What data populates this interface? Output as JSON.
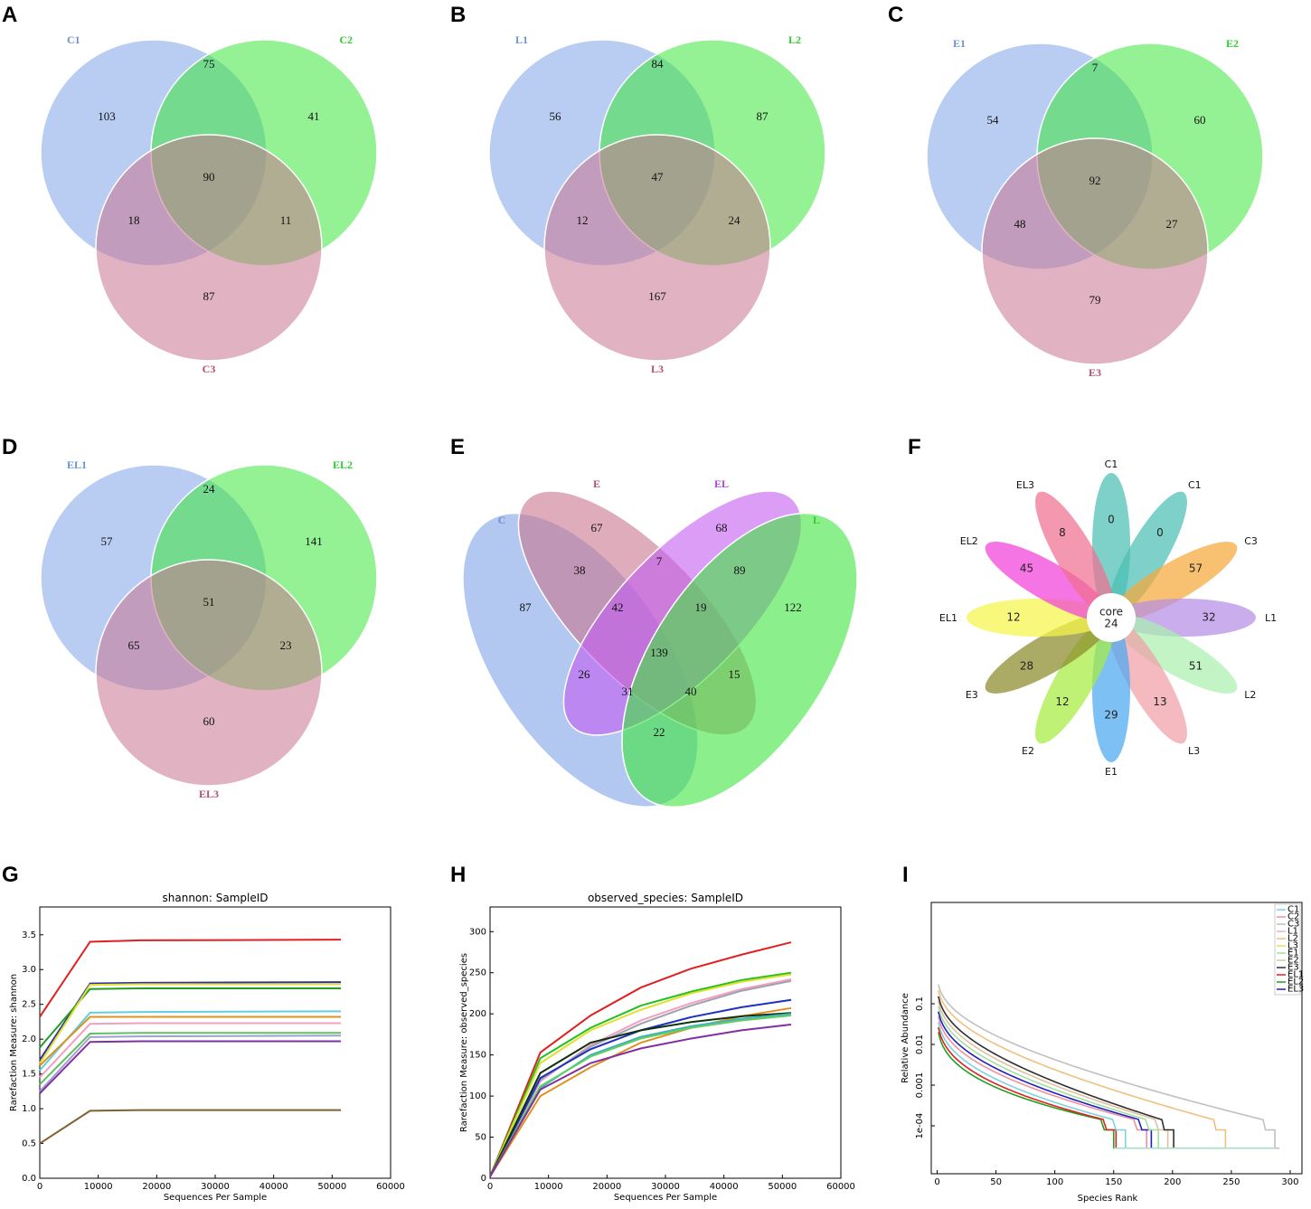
{
  "chart_data": [
    {
      "panel": "A",
      "type": "venn3",
      "sets": [
        {
          "name": "C1",
          "color": "#7fa3e8"
        },
        {
          "name": "C2",
          "color": "#3de63d"
        },
        {
          "name": "C3",
          "color": "#c97590"
        }
      ],
      "regions": {
        "only1": "103",
        "only2": "41",
        "only3": "87",
        "r12": "75",
        "r13": "18",
        "r23": "11",
        "all": "90"
      }
    },
    {
      "panel": "B",
      "type": "venn3",
      "sets": [
        {
          "name": "L1",
          "color": "#7fa3e8"
        },
        {
          "name": "L2",
          "color": "#3de63d"
        },
        {
          "name": "L3",
          "color": "#c97590"
        }
      ],
      "regions": {
        "only1": "56",
        "only2": "87",
        "only3": "167",
        "r12": "84",
        "r13": "12",
        "r23": "24",
        "all": "47"
      }
    },
    {
      "panel": "C",
      "type": "venn3",
      "sets": [
        {
          "name": "E1",
          "color": "#7fa3e8"
        },
        {
          "name": "E2",
          "color": "#3de63d"
        },
        {
          "name": "E3",
          "color": "#c97590"
        }
      ],
      "regions": {
        "only1": "54",
        "only2": "60",
        "only3": "79",
        "r12": "7",
        "r13": "48",
        "r23": "27",
        "all": "92"
      }
    },
    {
      "panel": "D",
      "type": "venn3",
      "sets": [
        {
          "name": "EL1",
          "color": "#7fa3e8"
        },
        {
          "name": "EL2",
          "color": "#3de63d"
        },
        {
          "name": "EL3",
          "color": "#c97590"
        }
      ],
      "regions": {
        "only1": "57",
        "only2": "141",
        "only3": "60",
        "r12": "24",
        "r13": "65",
        "r23": "23",
        "all": "51"
      }
    },
    {
      "panel": "E",
      "type": "venn4",
      "sets": [
        {
          "name": "C",
          "color": "#7fa3e8"
        },
        {
          "name": "E",
          "color": "#c97590"
        },
        {
          "name": "EL",
          "color": "#c35cf0"
        },
        {
          "name": "L",
          "color": "#3de63d"
        }
      ],
      "regions": [
        {
          "label": "C only",
          "value": "87"
        },
        {
          "label": "E only",
          "value": "67"
        },
        {
          "label": "EL only",
          "value": "68"
        },
        {
          "label": "L only",
          "value": "122"
        },
        {
          "label": "C,E",
          "value": "38"
        },
        {
          "label": "E,EL",
          "value": "7"
        },
        {
          "label": "EL,L",
          "value": "89"
        },
        {
          "label": "C,E,EL",
          "value": "42"
        },
        {
          "label": "E,EL,L",
          "value": "19"
        },
        {
          "label": "all",
          "value": "139"
        },
        {
          "label": "C,EL",
          "value": "26"
        },
        {
          "label": "E,L",
          "value": "15"
        },
        {
          "label": "C,EL,L",
          "value": "31"
        },
        {
          "label": "C,E,L",
          "value": "40"
        },
        {
          "label": "C,L",
          "value": "22"
        }
      ]
    },
    {
      "panel": "F",
      "type": "flower",
      "core_label": "core",
      "core_value": "24",
      "petals": [
        {
          "name": "C1",
          "value": "0",
          "color": "#4bbfb4"
        },
        {
          "name": "C1",
          "value": "0",
          "color": "#4bbfb4"
        },
        {
          "name": "C3",
          "value": "57",
          "color": "#f5a93a"
        },
        {
          "name": "L1",
          "value": "32",
          "color": "#b48ee6"
        },
        {
          "name": "L2",
          "value": "51",
          "color": "#aaf0b0"
        },
        {
          "name": "L3",
          "value": "13",
          "color": "#f0a0a8"
        },
        {
          "name": "E1",
          "value": "29",
          "color": "#4aa8f0"
        },
        {
          "name": "E2",
          "value": "12",
          "color": "#a6ec40"
        },
        {
          "name": "E3",
          "value": "28",
          "color": "#8b8a2a"
        },
        {
          "name": "EL1",
          "value": "12",
          "color": "#f5f54a"
        },
        {
          "name": "EL2",
          "value": "45",
          "color": "#f040d8"
        },
        {
          "name": "EL3",
          "value": "8",
          "color": "#f07090"
        }
      ]
    },
    {
      "panel": "G",
      "type": "line",
      "title": "shannon: SampleID",
      "xlabel": "Sequences Per Sample",
      "ylabel": "Rarefaction Measure: shannon",
      "xlim": [
        0,
        60000
      ],
      "ylim": [
        0.0,
        3.9
      ],
      "xticks": [
        "0",
        "10000",
        "20000",
        "30000",
        "40000",
        "50000",
        "60000"
      ],
      "yticks": [
        "0.0",
        "0.5",
        "1.0",
        "1.5",
        "2.0",
        "2.5",
        "3.0",
        "3.5"
      ],
      "x": [
        0,
        8600,
        17200,
        51500
      ],
      "series": [
        {
          "color": "#e02020",
          "values": [
            2.32,
            3.4,
            3.42,
            3.43
          ]
        },
        {
          "color": "#3030a0",
          "values": [
            1.7,
            2.8,
            2.81,
            2.82
          ]
        },
        {
          "color": "#20a020",
          "values": [
            1.88,
            2.72,
            2.73,
            2.73
          ]
        },
        {
          "color": "#e0e030",
          "values": [
            1.65,
            2.78,
            2.79,
            2.79
          ]
        },
        {
          "color": "#60d0e0",
          "values": [
            1.55,
            2.38,
            2.39,
            2.4
          ]
        },
        {
          "color": "#e09020",
          "values": [
            1.62,
            2.32,
            2.32,
            2.32
          ]
        },
        {
          "color": "#f0a0c0",
          "values": [
            1.45,
            2.22,
            2.23,
            2.23
          ]
        },
        {
          "color": "#60c060",
          "values": [
            1.35,
            2.08,
            2.09,
            2.09
          ]
        },
        {
          "color": "#a0a0d0",
          "values": [
            1.25,
            2.03,
            2.04,
            2.05
          ]
        },
        {
          "color": "#8030a0",
          "values": [
            1.22,
            1.96,
            1.97,
            1.97
          ]
        },
        {
          "color": "#806030",
          "values": [
            0.5,
            0.97,
            0.98,
            0.98
          ]
        }
      ]
    },
    {
      "panel": "H",
      "type": "line",
      "title": "observed_species: SampleID",
      "xlabel": "Sequences Per Sample",
      "ylabel": "Rarefaction Measure: observed_species",
      "xlim": [
        0,
        60000
      ],
      "ylim": [
        0,
        330
      ],
      "xticks": [
        "0",
        "10000",
        "20000",
        "30000",
        "40000",
        "50000",
        "60000"
      ],
      "yticks": [
        "0",
        "50",
        "100",
        "150",
        "200",
        "250",
        "300"
      ],
      "x": [
        0,
        8600,
        17200,
        25800,
        34400,
        43000,
        51500
      ],
      "series": [
        {
          "color": "#e02020",
          "values": [
            2,
            153,
            198,
            232,
            255,
            272,
            287
          ]
        },
        {
          "color": "#20c020",
          "values": [
            2,
            146,
            183,
            210,
            227,
            241,
            250
          ]
        },
        {
          "color": "#e0e030",
          "values": [
            2,
            140,
            180,
            205,
            225,
            239,
            248
          ]
        },
        {
          "color": "#f0a0c0",
          "values": [
            2,
            118,
            162,
            192,
            213,
            230,
            242
          ]
        },
        {
          "color": "#a0a0b0",
          "values": [
            2,
            120,
            160,
            188,
            210,
            228,
            240
          ]
        },
        {
          "color": "#2030c0",
          "values": [
            2,
            122,
            157,
            180,
            196,
            208,
            217
          ]
        },
        {
          "color": "#e09020",
          "values": [
            2,
            100,
            135,
            165,
            183,
            197,
            207
          ]
        },
        {
          "color": "#103010",
          "values": [
            2,
            128,
            165,
            180,
            190,
            197,
            201
          ]
        },
        {
          "color": "#40b0c0",
          "values": [
            2,
            110,
            150,
            172,
            185,
            194,
            200
          ]
        },
        {
          "color": "#60d060",
          "values": [
            2,
            112,
            148,
            170,
            183,
            192,
            198
          ]
        },
        {
          "color": "#8030a0",
          "values": [
            2,
            108,
            140,
            158,
            170,
            180,
            187
          ]
        }
      ]
    },
    {
      "panel": "I",
      "type": "line",
      "title": "",
      "xlabel": "Species Rank",
      "ylabel": "Relative Abundance",
      "xlim": [
        -5,
        310
      ],
      "yscale": "log",
      "xticks": [
        "0",
        "50",
        "100",
        "150",
        "200",
        "250",
        "300"
      ],
      "yticks": [
        "0.1",
        "0.01",
        "0.001",
        "1e-04"
      ],
      "legend": [
        {
          "name": "C1",
          "color": "#80d0e0"
        },
        {
          "name": "C2",
          "color": "#f090a0"
        },
        {
          "name": "C3",
          "color": "#c0c0c0"
        },
        {
          "name": "L1",
          "color": "#f0b0c0"
        },
        {
          "name": "L2",
          "color": "#f0c080"
        },
        {
          "name": "L3",
          "color": "#e0e060"
        },
        {
          "name": "E1",
          "color": "#a0e0a0"
        },
        {
          "name": "E2",
          "color": "#e0c0a0"
        },
        {
          "name": "E3",
          "color": "#303030"
        },
        {
          "name": "EL1",
          "color": "#e02020"
        },
        {
          "name": "EL2",
          "color": "#20a020"
        },
        {
          "name": "EL3",
          "color": "#2020c0"
        }
      ],
      "series": [
        {
          "color": "#20a020",
          "end": 150
        },
        {
          "color": "#e02020",
          "end": 152
        },
        {
          "color": "#80d0e0",
          "end": 160
        },
        {
          "color": "#f090a0",
          "end": 178
        },
        {
          "color": "#2020c0",
          "end": 182
        },
        {
          "color": "#a0e0a0",
          "end": 188
        },
        {
          "color": "#e0c0a0",
          "end": 196
        },
        {
          "color": "#303030",
          "end": 201
        },
        {
          "color": "#f0c080",
          "end": 245
        },
        {
          "color": "#c0c0c0",
          "end": 287
        }
      ]
    }
  ]
}
